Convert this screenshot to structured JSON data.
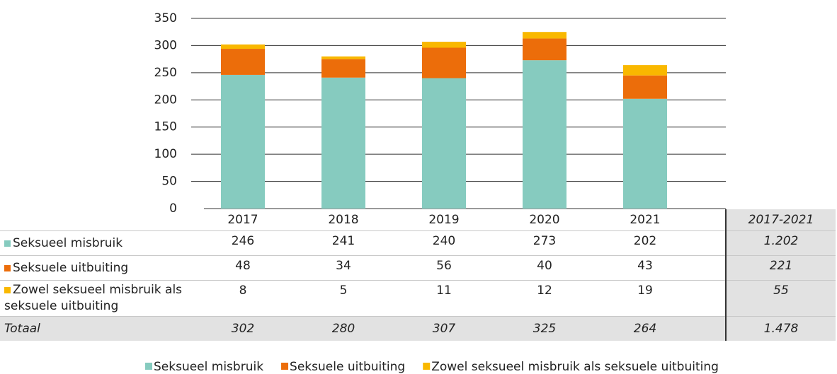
{
  "chart_data": {
    "type": "bar",
    "stacked": true,
    "categories": [
      "2017",
      "2018",
      "2019",
      "2020",
      "2021"
    ],
    "series": [
      {
        "name": "Seksueel misbruik",
        "color": "#86cbbf",
        "values": [
          246,
          241,
          240,
          273,
          202
        ]
      },
      {
        "name": "Seksuele uitbuiting",
        "color": "#ec6d0a",
        "values": [
          48,
          34,
          56,
          40,
          43
        ]
      },
      {
        "name": "Zowel seksueel misbruik als seksuele uitbuiting",
        "color": "#f9b800",
        "values": [
          8,
          5,
          11,
          12,
          19
        ]
      }
    ],
    "ylim": [
      0,
      350
    ],
    "yticks": [
      0,
      50,
      100,
      150,
      200,
      250,
      300,
      350
    ],
    "grid": true,
    "legend": "bottom"
  },
  "table": {
    "total_header": "2017-2021",
    "row_totals": [
      1202,
      221,
      55
    ],
    "row_total_labels": [
      "1.202",
      "221",
      "55"
    ],
    "total_label": "Totaal",
    "totals": [
      302,
      280,
      307,
      325,
      264
    ],
    "grand_total": 1478,
    "grand_total_label": "1.478"
  }
}
